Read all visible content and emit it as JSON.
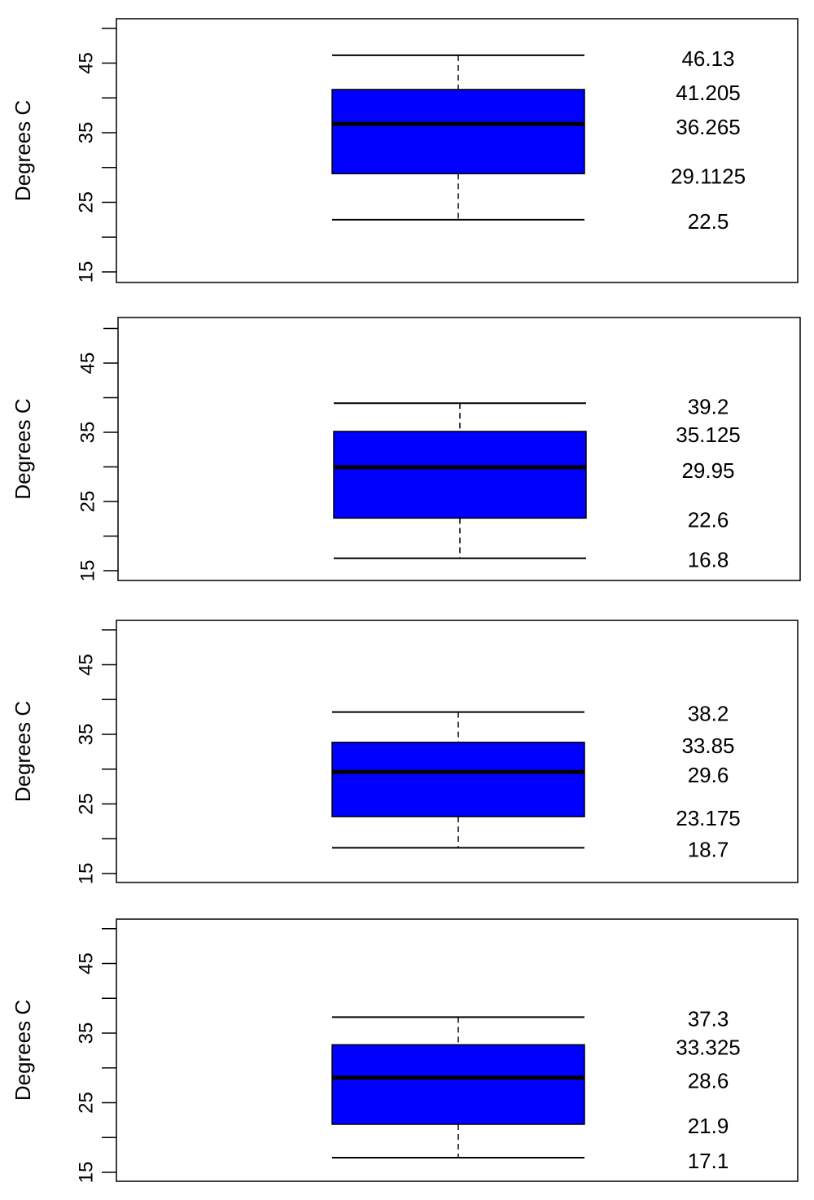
{
  "chart_data": [
    {
      "type": "box",
      "ylabel": "Degrees C",
      "yticks": [
        15,
        25,
        35,
        45
      ],
      "ylim": [
        15,
        50
      ],
      "box_color": "#0000ff",
      "stats": {
        "min": 22.5,
        "q1": 29.1125,
        "median": 36.265,
        "q3": 41.205,
        "max": 46.13
      },
      "labels": [
        "46.13",
        "41.205",
        "36.265",
        "29.1125",
        "22.5"
      ]
    },
    {
      "type": "box",
      "ylabel": "Degrees C",
      "yticks": [
        15,
        25,
        35,
        45
      ],
      "ylim": [
        15,
        50
      ],
      "box_color": "#0000ff",
      "stats": {
        "min": 16.8,
        "q1": 22.6,
        "median": 29.95,
        "q3": 35.125,
        "max": 39.2
      },
      "labels": [
        "39.2",
        "35.125",
        "29.95",
        "22.6",
        "16.8"
      ]
    },
    {
      "type": "box",
      "ylabel": "Degrees C",
      "yticks": [
        15,
        25,
        35,
        45
      ],
      "ylim": [
        15,
        50
      ],
      "box_color": "#0000ff",
      "stats": {
        "min": 18.7,
        "q1": 23.175,
        "median": 29.6,
        "q3": 33.85,
        "max": 38.2
      },
      "labels": [
        "38.2",
        "33.85",
        "29.6",
        "23.175",
        "18.7"
      ]
    },
    {
      "type": "box",
      "ylabel": "Degrees C",
      "yticks": [
        15,
        25,
        35,
        45
      ],
      "ylim": [
        15,
        50
      ],
      "box_color": "#0000ff",
      "stats": {
        "min": 17.1,
        "q1": 21.9,
        "median": 28.6,
        "q3": 33.325,
        "max": 37.3
      },
      "labels": [
        "37.3",
        "33.325",
        "28.6",
        "21.9",
        "17.1"
      ]
    }
  ]
}
